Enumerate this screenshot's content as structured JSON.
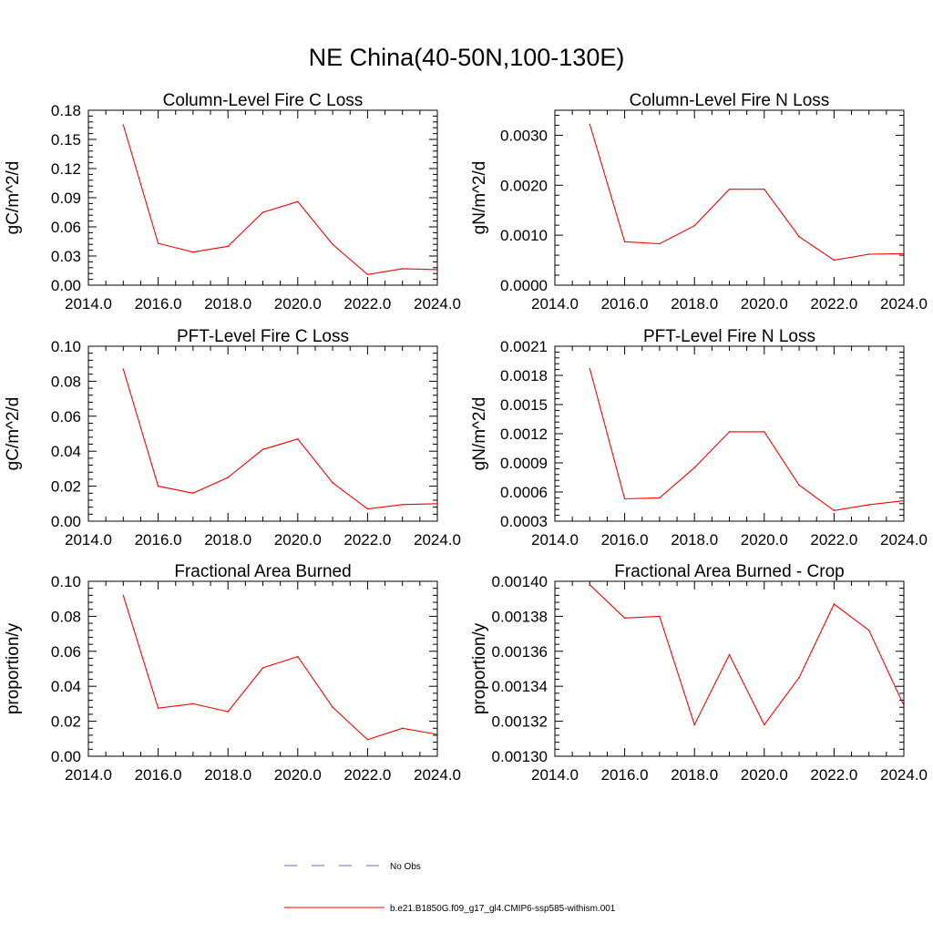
{
  "title": "NE China(40-50N,100-130E)",
  "legend": {
    "entries": [
      {
        "label": "No Obs",
        "color": "#6a6ac8",
        "style": "dashed"
      },
      {
        "label": "b.e21.B1850G.f09_g17_gl4.CMIP6-ssp585-withism.001",
        "color": "#ff0000",
        "style": "solid"
      }
    ]
  },
  "chart_data": [
    {
      "type": "line",
      "title": "Column-Level Fire C Loss",
      "ylabel": "gC/m^2/d",
      "xlim": [
        2014,
        2024
      ],
      "ylim": [
        0,
        0.18
      ],
      "xticks": [
        2014,
        2016,
        2018,
        2020,
        2022,
        2024
      ],
      "xtick_labels": [
        "2014.0",
        "2016.0",
        "2018.0",
        "2020.0",
        "2022.0",
        "2024.0"
      ],
      "yticks": [
        0,
        0.03,
        0.06,
        0.09,
        0.12,
        0.15,
        0.18
      ],
      "ytick_labels": [
        "0.00",
        "0.03",
        "0.06",
        "0.09",
        "0.12",
        "0.15",
        "0.18"
      ],
      "x": [
        2015,
        2016,
        2017,
        2018,
        2019,
        2020,
        2021,
        2022,
        2023,
        2024
      ],
      "series": [
        {
          "name": "b.e21.B1850G.f09_g17_gl4.CMIP6-ssp585-withism.001",
          "color": "#ff0000",
          "values": [
            0.165,
            0.043,
            0.034,
            0.04,
            0.075,
            0.086,
            0.042,
            0.011,
            0.017,
            0.016
          ]
        }
      ]
    },
    {
      "type": "line",
      "title": "Column-Level Fire N Loss",
      "ylabel": "gN/m^2/d",
      "xlim": [
        2014,
        2024
      ],
      "ylim": [
        0,
        0.0035
      ],
      "xticks": [
        2014,
        2016,
        2018,
        2020,
        2022,
        2024
      ],
      "xtick_labels": [
        "2014.0",
        "2016.0",
        "2018.0",
        "2020.0",
        "2022.0",
        "2024.0"
      ],
      "yticks": [
        0,
        0.001,
        0.002,
        0.003
      ],
      "ytick_labels": [
        "0.0000",
        "0.0010",
        "0.0020",
        "0.0030"
      ],
      "x": [
        2015,
        2016,
        2017,
        2018,
        2019,
        2020,
        2021,
        2022,
        2023,
        2024
      ],
      "series": [
        {
          "name": "b.e21.B1850G.f09_g17_gl4.CMIP6-ssp585-withism.001",
          "color": "#ff0000",
          "values": [
            0.00322,
            0.00087,
            0.00083,
            0.00119,
            0.00192,
            0.00192,
            0.00097,
            0.0005,
            0.00062,
            0.00063
          ]
        }
      ]
    },
    {
      "type": "line",
      "title": "PFT-Level Fire C Loss",
      "ylabel": "gC/m^2/d",
      "xlim": [
        2014,
        2024
      ],
      "ylim": [
        0,
        0.1
      ],
      "xticks": [
        2014,
        2016,
        2018,
        2020,
        2022,
        2024
      ],
      "xtick_labels": [
        "2014.0",
        "2016.0",
        "2018.0",
        "2020.0",
        "2022.0",
        "2024.0"
      ],
      "yticks": [
        0,
        0.02,
        0.04,
        0.06,
        0.08,
        0.1
      ],
      "ytick_labels": [
        "0.00",
        "0.02",
        "0.04",
        "0.06",
        "0.08",
        "0.10"
      ],
      "x": [
        2015,
        2016,
        2017,
        2018,
        2019,
        2020,
        2021,
        2022,
        2023,
        2024
      ],
      "series": [
        {
          "name": "b.e21.B1850G.f09_g17_gl4.CMIP6-ssp585-withism.001",
          "color": "#ff0000",
          "values": [
            0.087,
            0.02,
            0.016,
            0.025,
            0.041,
            0.047,
            0.022,
            0.007,
            0.0095,
            0.01
          ]
        }
      ]
    },
    {
      "type": "line",
      "title": "PFT-Level Fire N Loss",
      "ylabel": "gN/m^2/d",
      "xlim": [
        2014,
        2024
      ],
      "ylim": [
        0.0003,
        0.0021
      ],
      "xticks": [
        2014,
        2016,
        2018,
        2020,
        2022,
        2024
      ],
      "xtick_labels": [
        "2014.0",
        "2016.0",
        "2018.0",
        "2020.0",
        "2022.0",
        "2024.0"
      ],
      "yticks": [
        0.0003,
        0.0006,
        0.0009,
        0.0012,
        0.0015,
        0.0018,
        0.0021
      ],
      "ytick_labels": [
        "0.0003",
        "0.0006",
        "0.0009",
        "0.0012",
        "0.0015",
        "0.0018",
        "0.0021"
      ],
      "x": [
        2015,
        2016,
        2017,
        2018,
        2019,
        2020,
        2021,
        2022,
        2023,
        2024
      ],
      "series": [
        {
          "name": "b.e21.B1850G.f09_g17_gl4.CMIP6-ssp585-withism.001",
          "color": "#ff0000",
          "values": [
            0.00187,
            0.00053,
            0.00054,
            0.00085,
            0.00122,
            0.00122,
            0.00067,
            0.00041,
            0.00047,
            0.00051
          ]
        }
      ]
    },
    {
      "type": "line",
      "title": "Fractional Area Burned",
      "ylabel": "proportion/y",
      "xlim": [
        2014,
        2024
      ],
      "ylim": [
        0,
        0.1
      ],
      "xticks": [
        2014,
        2016,
        2018,
        2020,
        2022,
        2024
      ],
      "xtick_labels": [
        "2014.0",
        "2016.0",
        "2018.0",
        "2020.0",
        "2022.0",
        "2024.0"
      ],
      "yticks": [
        0,
        0.02,
        0.04,
        0.06,
        0.08,
        0.1
      ],
      "ytick_labels": [
        "0.00",
        "0.02",
        "0.04",
        "0.06",
        "0.08",
        "0.10"
      ],
      "x": [
        2015,
        2016,
        2017,
        2018,
        2019,
        2020,
        2021,
        2022,
        2023,
        2024
      ],
      "series": [
        {
          "name": "b.e21.B1850G.f09_g17_gl4.CMIP6-ssp585-withism.001",
          "color": "#ff0000",
          "values": [
            0.092,
            0.0275,
            0.03,
            0.0255,
            0.0505,
            0.057,
            0.028,
            0.0095,
            0.016,
            0.0125
          ]
        }
      ]
    },
    {
      "type": "line",
      "title": "Fractional Area Burned - Crop",
      "ylabel": "proportion/y",
      "xlim": [
        2014,
        2024
      ],
      "ylim": [
        0.0013,
        0.0014
      ],
      "xticks": [
        2014,
        2016,
        2018,
        2020,
        2022,
        2024
      ],
      "xtick_labels": [
        "2014.0",
        "2016.0",
        "2018.0",
        "2020.0",
        "2022.0",
        "2024.0"
      ],
      "yticks": [
        0.0013,
        0.00132,
        0.00134,
        0.00136,
        0.00138,
        0.0014
      ],
      "ytick_labels": [
        "0.00130",
        "0.00132",
        "0.00134",
        "0.00136",
        "0.00138",
        "0.00140"
      ],
      "x": [
        2015,
        2016,
        2017,
        2018,
        2019,
        2020,
        2021,
        2022,
        2023,
        2024
      ],
      "series": [
        {
          "name": "b.e21.B1850G.f09_g17_gl4.CMIP6-ssp585-withism.001",
          "color": "#ff0000",
          "values": [
            0.001398,
            0.001379,
            0.00138,
            0.001318,
            0.001358,
            0.001318,
            0.001345,
            0.001387,
            0.001372,
            0.001329
          ]
        }
      ]
    }
  ]
}
